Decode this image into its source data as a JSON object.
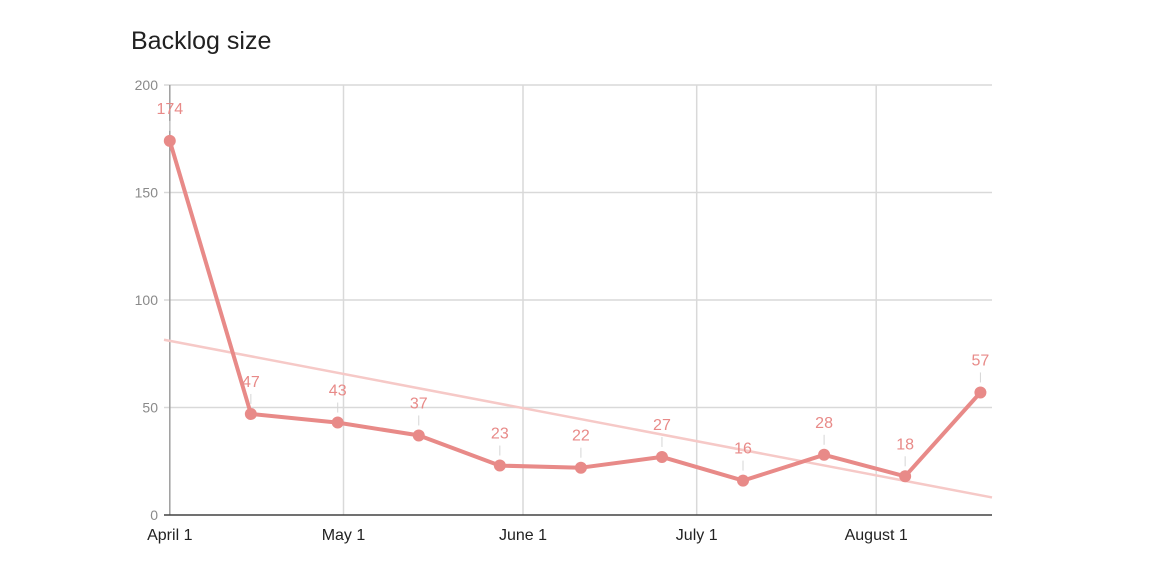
{
  "chart_data": {
    "type": "line",
    "title": "Backlog size",
    "xlabel": "",
    "ylabel": "",
    "x": [
      "2020-04-01",
      "2020-04-15",
      "2020-04-30",
      "2020-05-14",
      "2020-05-28",
      "2020-06-11",
      "2020-06-25",
      "2020-07-09",
      "2020-07-23",
      "2020-08-06",
      "2020-08-19"
    ],
    "series": [
      {
        "name": "",
        "values": [
          174,
          47,
          43,
          37,
          23,
          22,
          27,
          16,
          28,
          18,
          57
        ],
        "color": "#e88a88"
      }
    ],
    "trendline": {
      "type": "linear",
      "color": "#f6c9c7"
    },
    "ylim": [
      0,
      200
    ],
    "yticks": [
      0,
      50,
      100,
      150,
      200
    ],
    "xlim": [
      "2020-03-31",
      "2020-08-21"
    ],
    "xticks": [
      {
        "date": "2020-04-01",
        "label": "April 1"
      },
      {
        "date": "2020-05-01",
        "label": "May 1"
      },
      {
        "date": "2020-06-01",
        "label": "June 1"
      },
      {
        "date": "2020-07-01",
        "label": "July 1"
      },
      {
        "date": "2020-08-01",
        "label": "August 1"
      }
    ],
    "data_labels": true,
    "grid": true,
    "legend": "none"
  }
}
